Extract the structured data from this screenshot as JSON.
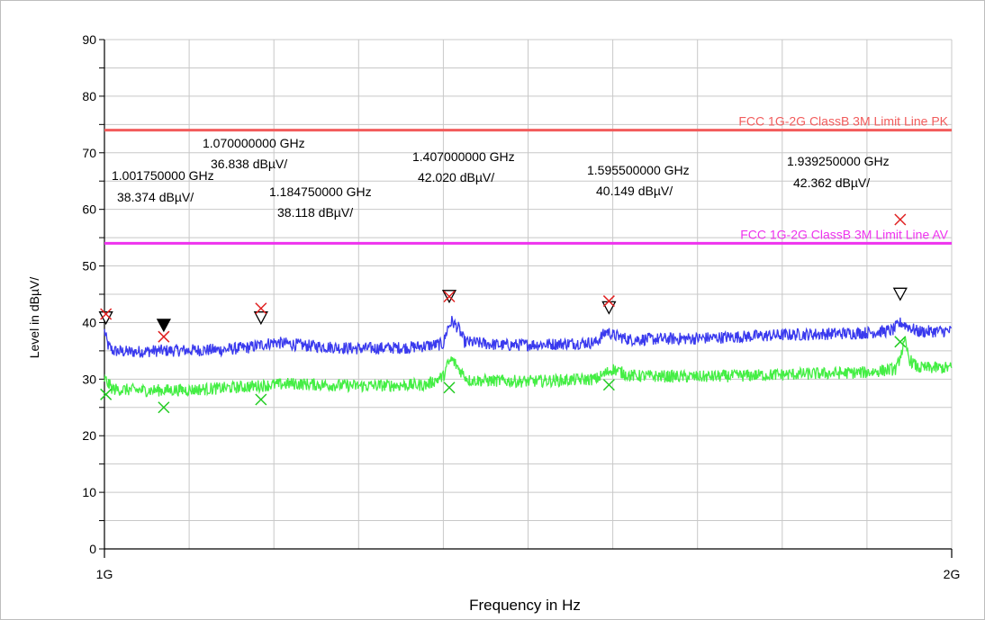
{
  "chart_data": {
    "type": "line",
    "xlabel": "Frequency in Hz",
    "ylabel": "Level in dBµV/",
    "xlim": [
      1,
      2
    ],
    "x_unit": "GHz",
    "ylim": [
      0,
      90
    ],
    "x_tick_labels": [
      {
        "x": 1,
        "label": "1G"
      },
      {
        "x": 2,
        "label": "2G"
      }
    ],
    "y_ticks": [
      0,
      10,
      20,
      30,
      40,
      50,
      60,
      70,
      80,
      90
    ],
    "grid": true,
    "limit_lines": [
      {
        "label": "FCC 1G-2G ClassB 3M Limit Line PK",
        "value": 74,
        "color": "#f25c5c"
      },
      {
        "label": "FCC 1G-2G ClassB 3M Limit Line AV",
        "value": 54,
        "color": "#ee33ee"
      }
    ],
    "series": [
      {
        "color": "#3a3aee",
        "points": [
          [
            1.0,
            38.5
          ],
          [
            1.004,
            36.0
          ],
          [
            1.01,
            35.0
          ],
          [
            1.03,
            34.8
          ],
          [
            1.06,
            35.0
          ],
          [
            1.1,
            35.1
          ],
          [
            1.14,
            35.2
          ],
          [
            1.17,
            35.6
          ],
          [
            1.2,
            36.5
          ],
          [
            1.24,
            35.9
          ],
          [
            1.3,
            35.4
          ],
          [
            1.36,
            35.6
          ],
          [
            1.4,
            36.2
          ],
          [
            1.405,
            39.0
          ],
          [
            1.41,
            40.2
          ],
          [
            1.418,
            39.0
          ],
          [
            1.425,
            36.6
          ],
          [
            1.47,
            36.0
          ],
          [
            1.53,
            36.2
          ],
          [
            1.58,
            36.5
          ],
          [
            1.593,
            38.5
          ],
          [
            1.6,
            37.8
          ],
          [
            1.62,
            37.0
          ],
          [
            1.7,
            37.2
          ],
          [
            1.8,
            37.8
          ],
          [
            1.9,
            38.2
          ],
          [
            1.93,
            38.6
          ],
          [
            1.94,
            40.0
          ],
          [
            1.96,
            38.4
          ],
          [
            2.0,
            38.5
          ]
        ]
      },
      {
        "color": "#44ee44",
        "points": [
          [
            1.0,
            30.0
          ],
          [
            1.003,
            29.5
          ],
          [
            1.01,
            28.2
          ],
          [
            1.05,
            28.0
          ],
          [
            1.1,
            28.1
          ],
          [
            1.14,
            28.4
          ],
          [
            1.18,
            28.8
          ],
          [
            1.22,
            29.2
          ],
          [
            1.3,
            28.8
          ],
          [
            1.38,
            29.0
          ],
          [
            1.4,
            30.5
          ],
          [
            1.405,
            32.5
          ],
          [
            1.41,
            33.5
          ],
          [
            1.42,
            31.5
          ],
          [
            1.43,
            29.8
          ],
          [
            1.5,
            29.6
          ],
          [
            1.58,
            30.0
          ],
          [
            1.6,
            31.8
          ],
          [
            1.62,
            30.6
          ],
          [
            1.7,
            30.4
          ],
          [
            1.8,
            30.8
          ],
          [
            1.9,
            31.2
          ],
          [
            1.935,
            31.8
          ],
          [
            1.94,
            34.5
          ],
          [
            1.945,
            36.5
          ],
          [
            1.95,
            33.5
          ],
          [
            1.96,
            32.0
          ],
          [
            2.0,
            32.0
          ]
        ]
      }
    ],
    "markers": [
      {
        "freq": "1.001750000 GHz",
        "level": "38.374 dBµV/",
        "x": 1.00175,
        "peak": 41.5,
        "tri": 39.8,
        "avg": 27.3,
        "filled": false
      },
      {
        "freq": "1.070000000 GHz",
        "level": "36.838 dBµV/",
        "x": 1.07,
        "peak": 37.5,
        "tri": 38.5,
        "avg": 25.0,
        "filled": true
      },
      {
        "freq": "1.184750000 GHz",
        "level": "38.118 dBµV/",
        "x": 1.18475,
        "peak": 42.5,
        "tri": 39.8,
        "avg": 26.4,
        "filled": false
      },
      {
        "freq": "1.407000000 GHz",
        "level": "42.020 dBµV/",
        "x": 1.407,
        "peak": 44.6,
        "tri": 43.6,
        "avg": 28.5,
        "filled": false
      },
      {
        "freq": "1.595500000 GHz",
        "level": "40.149 dBµV/",
        "x": 1.5955,
        "peak": 43.8,
        "tri": 41.6,
        "avg": 29.0,
        "filled": false
      },
      {
        "freq": "1.939250000 GHz",
        "level": "42.362 dBµV/",
        "x": 1.93925,
        "peak": 58.2,
        "tri": 44.0,
        "avg": 36.6,
        "filled": false
      }
    ],
    "colors": {
      "peak_marker": "#e02020",
      "avg_marker": "#22cc22",
      "marker_triangle": "#000000",
      "grid": "#c8c8c8"
    }
  }
}
